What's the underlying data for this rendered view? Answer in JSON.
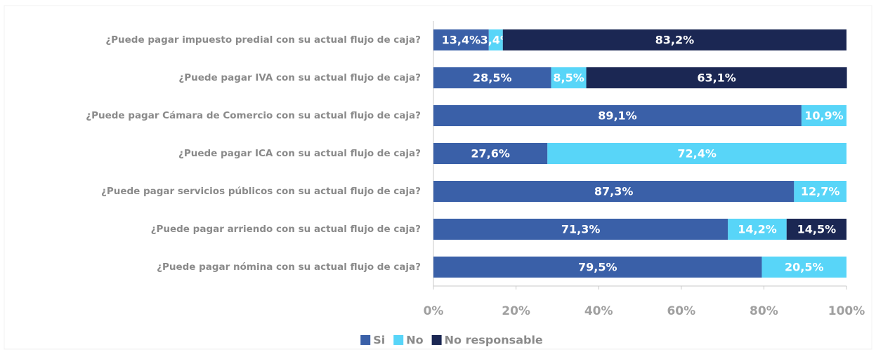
{
  "chart_data": {
    "type": "stacked-bar-horizontal",
    "categories": [
      "¿Puede pagar impuesto predial con su actual flujo de caja?",
      "¿Puede pagar IVA con su actual flujo de caja?",
      "¿Puede pagar Cámara de Comercio con su actual flujo de caja?",
      "¿Puede pagar ICA con su actual flujo de caja?",
      "¿Puede pagar servicios públicos con su actual flujo de caja?",
      "¿Puede pagar arriendo con su actual flujo de caja?",
      "¿Puede pagar nómina con su actual flujo de caja?"
    ],
    "series": [
      {
        "name": "Si",
        "color": "#3a60a8",
        "values": [
          13.4,
          28.5,
          89.1,
          27.6,
          87.3,
          71.3,
          79.5
        ],
        "value_labels": [
          "13,4%",
          "28,5%",
          "89,1%",
          "27,6%",
          "87,3%",
          "71,3%",
          "79,5%"
        ]
      },
      {
        "name": "No",
        "color": "#58d5f8",
        "values": [
          3.4,
          8.5,
          10.9,
          72.4,
          12.7,
          14.2,
          20.5
        ],
        "value_labels": [
          "3,4%",
          "8,5%",
          "10,9%",
          "72,4%",
          "12,7%",
          "14,2%",
          "20,5%"
        ]
      },
      {
        "name": "No responsable",
        "color": "#1b2753",
        "values": [
          83.2,
          63.1,
          null,
          null,
          null,
          14.5,
          null
        ],
        "value_labels": [
          "83,2%",
          "63,1%",
          null,
          null,
          null,
          "14,5%",
          null
        ]
      }
    ],
    "xlim": [
      0,
      100
    ],
    "xticks": [
      {
        "value": 0,
        "label": "0%"
      },
      {
        "value": 20,
        "label": "20%"
      },
      {
        "value": 40,
        "label": "40%"
      },
      {
        "value": 60,
        "label": "60%"
      },
      {
        "value": 80,
        "label": "80%"
      },
      {
        "value": 100,
        "label": "100%"
      }
    ],
    "legend": "bottom"
  }
}
